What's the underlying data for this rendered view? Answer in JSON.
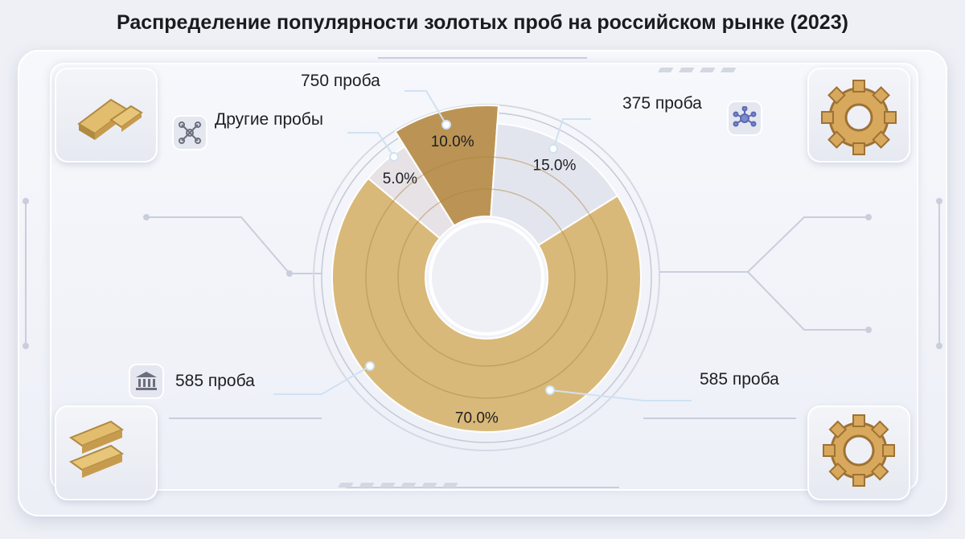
{
  "title": "Распределение популярности золотых проб на российском рынке (2023)",
  "chart_data": {
    "type": "pie",
    "variant": "donut",
    "slices": [
      {
        "label": "585 проба",
        "value": 70.0,
        "value_label": "70.0%",
        "color": "#d9b979"
      },
      {
        "label": "Другие пробы",
        "value": 5.0,
        "value_label": "5.0%",
        "color": "#e6e2e6"
      },
      {
        "label": "750 проба",
        "value": 10.0,
        "value_label": "10.0%",
        "color": "#bb9455"
      },
      {
        "label": "375 проба",
        "value": 15.0,
        "value_label": "15.0%",
        "color": "#e3e5ee"
      }
    ],
    "extra_labels": [
      "585 проба"
    ]
  },
  "icons": {
    "top_left": "gold-bars-icon",
    "bottom_left": "gold-bars-icon",
    "top_right": "gear-icon",
    "bottom_right": "gear-icon",
    "other": "network-icon",
    "p375": "network-icon",
    "bank": "bank-icon"
  }
}
